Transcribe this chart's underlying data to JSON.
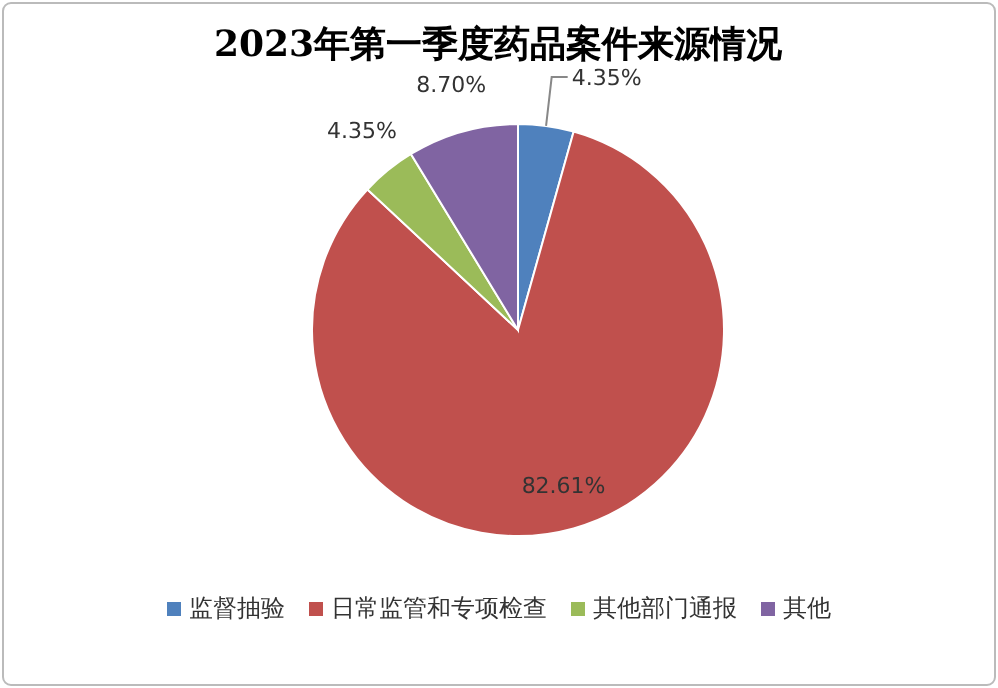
{
  "chart_data": {
    "type": "pie",
    "title": "2023年第一季度药品案件来源情况",
    "categories": [
      "监督抽验",
      "日常监管和专项检查",
      "其他部门通报",
      "其他"
    ],
    "values": [
      4.35,
      82.61,
      4.35,
      8.7
    ],
    "colors": [
      "#4f81bd",
      "#c0504d",
      "#9bbb59",
      "#8064a2"
    ],
    "value_labels": [
      "4.35%",
      "82.61%",
      "4.35%",
      "8.70%"
    ],
    "legend": "bottom"
  }
}
